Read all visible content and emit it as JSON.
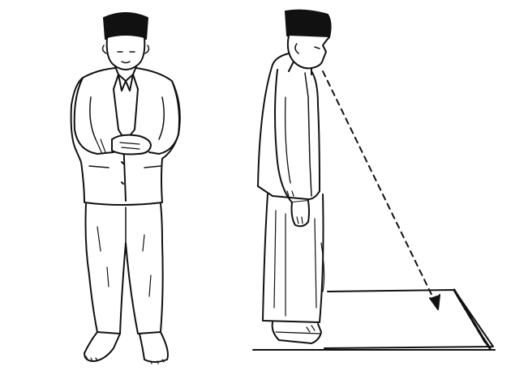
{
  "illustration": {
    "figures": [
      "front-view-standing",
      "side-view-standing"
    ],
    "elements": [
      "peci-cap",
      "jacket",
      "sarong",
      "prayer-mat",
      "gaze-direction-arrow"
    ],
    "colors": {
      "ink": "#111111",
      "paper": "#ffffff"
    }
  }
}
